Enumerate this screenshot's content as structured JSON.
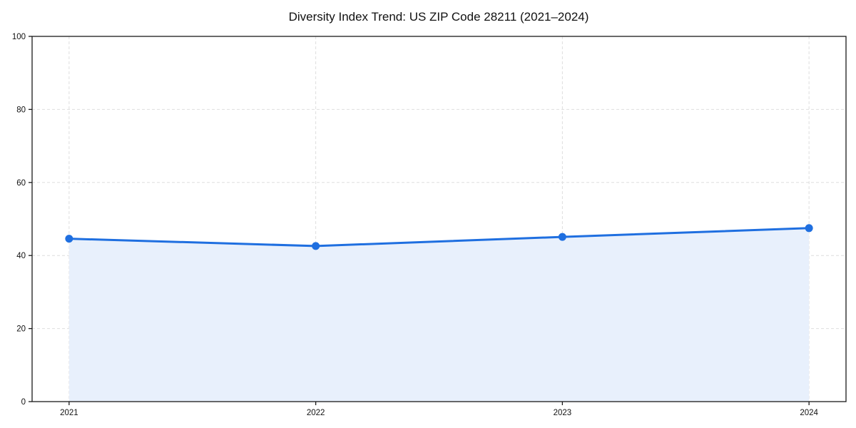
{
  "chart_data": {
    "type": "area",
    "title": "Diversity Index Trend: US ZIP Code 28211 (2021–2024)",
    "x": [
      2021,
      2022,
      2023,
      2024
    ],
    "xticks": [
      2021,
      2022,
      2023,
      2024
    ],
    "xtick_labels": [
      "2021",
      "2022",
      "2023",
      "2024"
    ],
    "series": [
      {
        "name": "Diversity Index",
        "values": [
          44.6,
          42.6,
          45.1,
          47.5
        ]
      }
    ],
    "xlabel": "",
    "ylabel": "",
    "xlim": [
      2020.85,
      2024.15
    ],
    "ylim": [
      0,
      100
    ],
    "yticks": [
      0,
      20,
      40,
      60,
      80,
      100
    ],
    "grid": true,
    "grid_style": "dashed",
    "legend_position": "none",
    "fill_to_zero": true,
    "colors": {
      "line": "#1f6fe0",
      "marker": "#1f6fe0",
      "fill": "#e8f0fc",
      "grid": "#dedede",
      "spine": "#1a1a1a",
      "text": "#111111",
      "background": "#ffffff"
    }
  }
}
